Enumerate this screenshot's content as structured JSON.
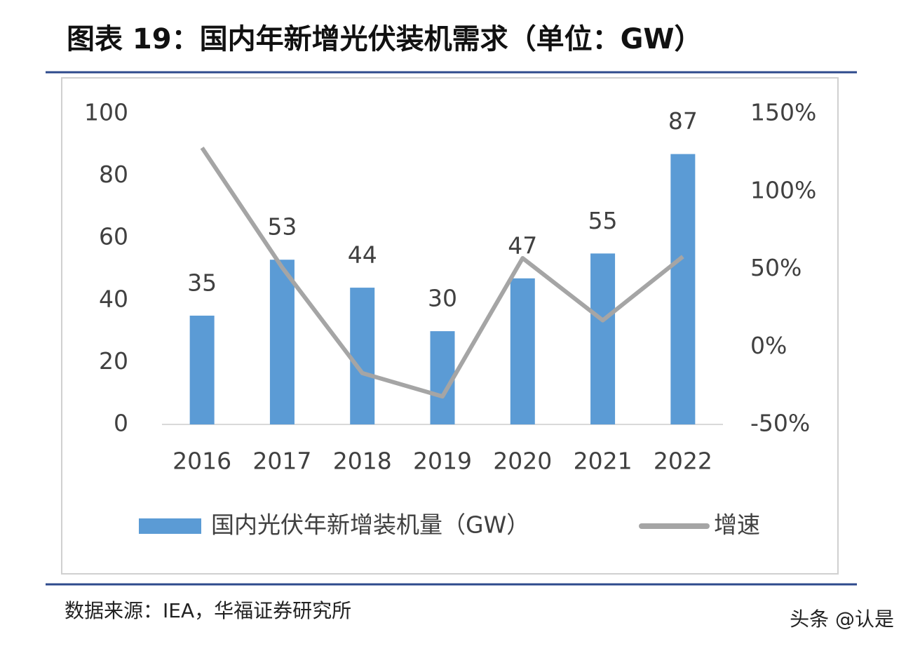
{
  "header": {
    "title": "图表 19：国内年新增光伏装机需求（单位：GW）"
  },
  "chart_data": {
    "type": "bar",
    "categories": [
      "2016",
      "2017",
      "2018",
      "2019",
      "2020",
      "2021",
      "2022"
    ],
    "series": [
      {
        "name": "国内光伏年新增装机量（GW）",
        "type": "bar",
        "color": "#5b9bd5",
        "values": [
          35,
          53,
          44,
          30,
          47,
          55,
          87
        ]
      },
      {
        "name": "增速",
        "type": "line",
        "axis": "y2",
        "color": "#a5a5a5",
        "values": [
          128,
          51,
          -17,
          -32,
          57,
          17,
          58
        ]
      }
    ],
    "ylim": [
      0,
      100
    ],
    "yticks": [
      0,
      20,
      40,
      60,
      80,
      100
    ],
    "y2lim": [
      -50,
      150
    ],
    "y2ticks": [
      {
        "value": -50,
        "label": "-50%"
      },
      {
        "value": 0,
        "label": "0%"
      },
      {
        "value": 50,
        "label": "50%"
      },
      {
        "value": 100,
        "label": "100%"
      },
      {
        "value": 150,
        "label": "150%"
      }
    ],
    "legend": "bottom"
  },
  "footer": {
    "source": "数据来源：IEA，华福证券研究所",
    "watermark": "头条 @认是"
  }
}
